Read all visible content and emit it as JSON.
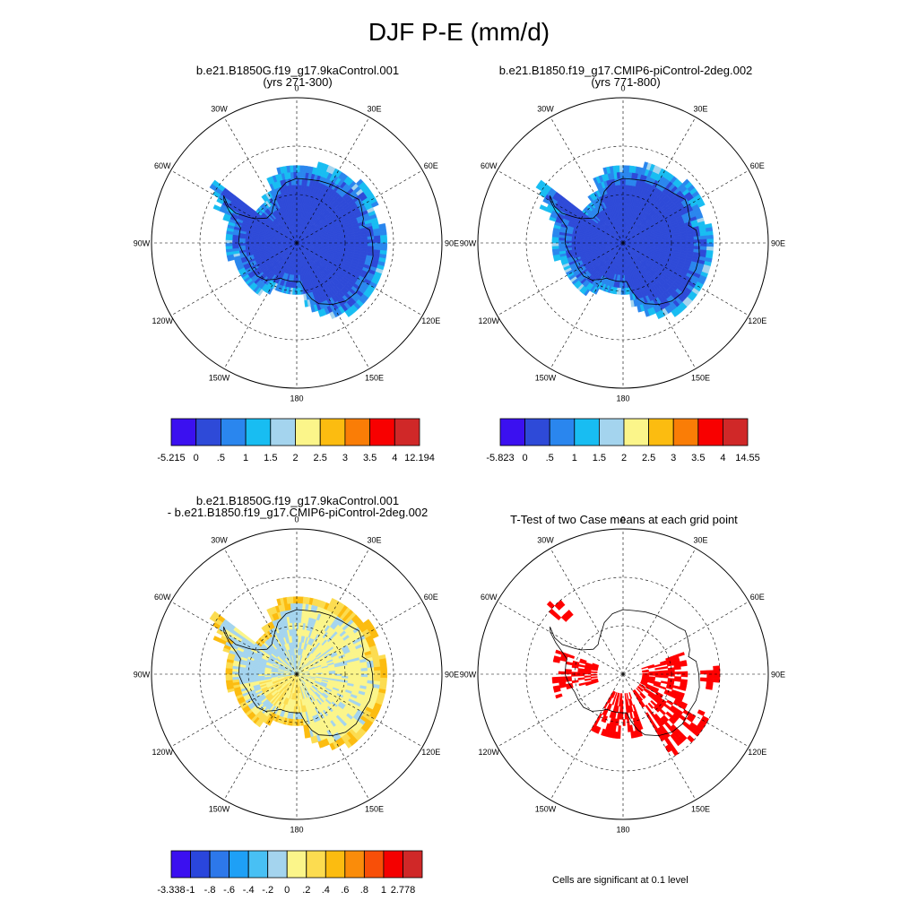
{
  "title": "DJF P-E (mm/d)",
  "panels": [
    {
      "title_line1": "b.e21.B1850G.f19_g17.9kaControl.001",
      "title_line2": "(yrs 271-300)"
    },
    {
      "title_line1": "b.e21.B1850.f19_g17.CMIP6-piControl-2deg.002",
      "title_line2": "(yrs 771-800)"
    },
    {
      "title_line1": "b.e21.B1850G.f19_g17.9kaControl.001",
      "title_line2": "- b.e21.B1850.f19_g17.CMIP6-piControl-2deg.002"
    },
    {
      "title_line1": "T-Test of two Case means at each grid point",
      "title_line2": ""
    }
  ],
  "longitude_labels": [
    "0",
    "30E",
    "60E",
    "90E",
    "120E",
    "150E",
    "180",
    "150W",
    "120W",
    "90W",
    "60W",
    "30W"
  ],
  "colorbars": [
    {
      "labels": [
        "-5.215",
        "0",
        ".5",
        "1",
        "1.5",
        "2",
        "2.5",
        "3",
        "3.5",
        "4",
        "12.194"
      ],
      "colors": [
        "#3b10f0",
        "#2e4ad8",
        "#2a86ee",
        "#18bdf2",
        "#a4d4ee",
        "#fbf58a",
        "#fcbc10",
        "#fa7d06",
        "#f80000",
        "#d02828"
      ]
    },
    {
      "labels": [
        "-5.823",
        "0",
        ".5",
        "1",
        "1.5",
        "2",
        "2.5",
        "3",
        "3.5",
        "4",
        "14.55"
      ],
      "colors": [
        "#3b10f0",
        "#2e4ad8",
        "#2a86ee",
        "#18bdf2",
        "#a4d4ee",
        "#fbf58a",
        "#fcbc10",
        "#fa7d06",
        "#f80000",
        "#d02828"
      ]
    },
    {
      "labels": [
        "-3.338",
        "-1",
        "-.8",
        "-.6",
        "-.4",
        "-.2",
        "0",
        ".2",
        ".4",
        ".6",
        ".8",
        "1",
        "2.778"
      ],
      "colors": [
        "#3b10f0",
        "#2a46dc",
        "#2d78ea",
        "#1ea0f6",
        "#48c0f4",
        "#a4d4ee",
        "#fbf58a",
        "#fcdc50",
        "#fcbc10",
        "#fa8c0a",
        "#f84f08",
        "#f40000",
        "#d02828"
      ]
    }
  ],
  "ttest_note": "Cells are significant at 0.1 level"
}
